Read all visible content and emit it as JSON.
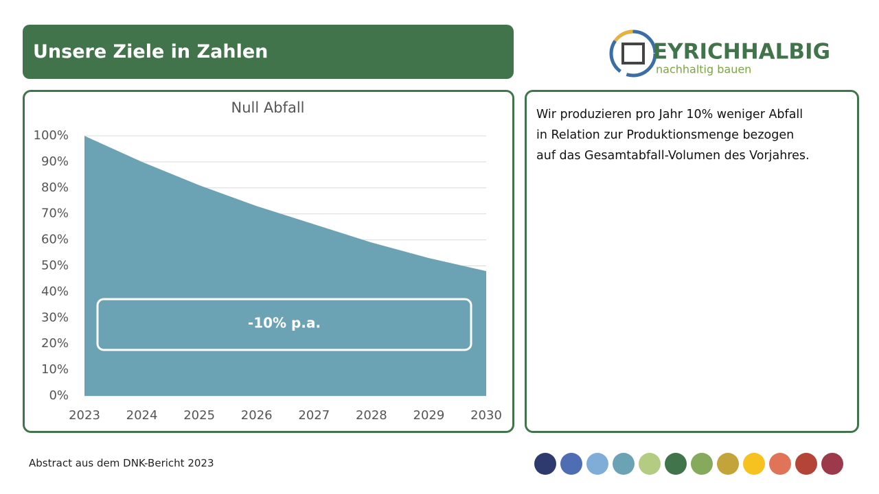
{
  "header": {
    "title": "Unsere Ziele in Zahlen"
  },
  "logo": {
    "name": "EYRICHHALBIG",
    "tagline": "nachhaltig bauen"
  },
  "chart_data": {
    "type": "area",
    "title": "Null Abfall",
    "categories": [
      "2023",
      "2024",
      "2025",
      "2026",
      "2027",
      "2028",
      "2029",
      "2030"
    ],
    "values": [
      100,
      90,
      81,
      73,
      66,
      59,
      53,
      48
    ],
    "color": "#6ba3b5",
    "ylim": [
      0,
      100
    ],
    "yticks": [
      {
        "value": 0,
        "label": "0%"
      },
      {
        "value": 10,
        "label": "10%"
      },
      {
        "value": 20,
        "label": "20%"
      },
      {
        "value": 30,
        "label": "30%"
      },
      {
        "value": 40,
        "label": "40%"
      },
      {
        "value": 50,
        "label": "50%"
      },
      {
        "value": 60,
        "label": "60%"
      },
      {
        "value": 70,
        "label": "70%"
      },
      {
        "value": 80,
        "label": "80%"
      },
      {
        "value": 90,
        "label": "90%"
      },
      {
        "value": 100,
        "label": "100%"
      }
    ],
    "grid": true,
    "annotation": "-10% p.a."
  },
  "description": {
    "lines": [
      "Wir produzieren pro Jahr 10% weniger Abfall",
      "in Relation zur Produktionsmenge bezogen",
      "auf das Gesamtabfall-Volumen des Vorjahres."
    ]
  },
  "footer": {
    "source": "Abstract aus dem DNK-Bericht 2023"
  }
}
